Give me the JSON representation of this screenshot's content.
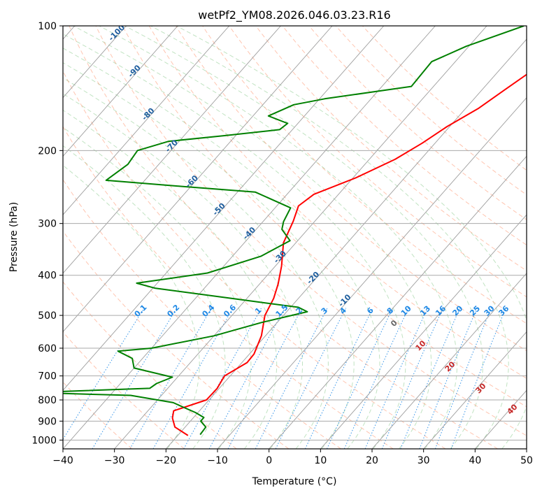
{
  "chart_data": {
    "type": "line",
    "title": "wetPf2_YM08.2026.046.03.23.R16",
    "xlabel": "Temperature (°C)",
    "ylabel": "Pressure (hPa)",
    "xlim": [
      -40,
      50
    ],
    "ylim": [
      1050,
      100
    ],
    "y_scale": "log",
    "grid": true,
    "x_ticks": [
      "−40",
      "−30",
      "−20",
      "−10",
      "0",
      "10",
      "20",
      "30",
      "40",
      "50"
    ],
    "y_ticks": [
      "100",
      "200",
      "300",
      "400",
      "500",
      "600",
      "700",
      "800",
      "900",
      "1000"
    ],
    "series": [
      {
        "color": "#ff0000",
        "points": [
          [
            -7.6,
            100
          ],
          [
            -8.5,
            110
          ],
          [
            -10.5,
            118
          ],
          [
            -13.5,
            128
          ],
          [
            -15.5,
            142
          ],
          [
            -17.5,
            158
          ],
          [
            -20.5,
            175
          ],
          [
            -22.5,
            192
          ],
          [
            -25.0,
            210
          ],
          [
            -29.5,
            233
          ],
          [
            -34.8,
            255
          ],
          [
            -35.8,
            272
          ],
          [
            -34.2,
            296
          ],
          [
            -32.4,
            334
          ],
          [
            -28.8,
            380
          ],
          [
            -26.4,
            420
          ],
          [
            -24.8,
            455
          ],
          [
            -23.6,
            500
          ],
          [
            -20.8,
            560
          ],
          [
            -19.1,
            620
          ],
          [
            -19.0,
            650
          ],
          [
            -21.1,
            700
          ],
          [
            -20.4,
            750
          ],
          [
            -20.5,
            800
          ],
          [
            -25.0,
            850
          ],
          [
            -24.0,
            885
          ],
          [
            -22.0,
            930
          ],
          [
            -18.0,
            975
          ]
        ]
      },
      {
        "color": "#008000",
        "points": [
          [
            -22.8,
            100
          ],
          [
            -30.5,
            112
          ],
          [
            -34.6,
            122
          ],
          [
            -34.3,
            140
          ],
          [
            -49.0,
            150
          ],
          [
            -54.0,
            155
          ],
          [
            -57.0,
            165
          ],
          [
            -52.0,
            172
          ],
          [
            -52.5,
            178
          ],
          [
            -62.0,
            184
          ],
          [
            -72.0,
            190
          ],
          [
            -76.5,
            200
          ],
          [
            -76.0,
            216
          ],
          [
            -77.5,
            236
          ],
          [
            -62.0,
            244
          ],
          [
            -46.5,
            252
          ],
          [
            -37.0,
            275
          ],
          [
            -36.0,
            297
          ],
          [
            -35.0,
            310
          ],
          [
            -31.5,
            330
          ],
          [
            -34.5,
            360
          ],
          [
            -42.0,
            395
          ],
          [
            -54.0,
            418
          ],
          [
            -49.5,
            430
          ],
          [
            -33.0,
            455
          ],
          [
            -18.5,
            478
          ],
          [
            -16.0,
            490
          ],
          [
            -23.0,
            520
          ],
          [
            -30.0,
            560
          ],
          [
            -40.0,
            600
          ],
          [
            -46.0,
            610
          ],
          [
            -42.0,
            635
          ],
          [
            -40.0,
            670
          ],
          [
            -31.0,
            705
          ],
          [
            -33.0,
            730
          ],
          [
            -33.5,
            750
          ],
          [
            -56.0,
            768
          ],
          [
            -36.0,
            780
          ],
          [
            -26.5,
            812
          ],
          [
            -23.5,
            835
          ],
          [
            -20.5,
            858
          ],
          [
            -18.0,
            882
          ],
          [
            -18.0,
            900
          ],
          [
            -16.0,
            930
          ],
          [
            -15.8,
            970
          ]
        ]
      }
    ],
    "mixing_ratio_labels": [
      "0.1",
      "0.2",
      "0.4",
      "0.6",
      "1",
      "1.5",
      "2",
      "3",
      "4",
      "6",
      "8",
      "10",
      "13",
      "16",
      "20",
      "25",
      "30",
      "36"
    ],
    "dry_adiabat_labels": [
      "-100",
      "-90",
      "-80",
      "-70",
      "-60",
      "-50",
      "-40",
      "-30",
      "-20",
      "-10"
    ],
    "moist_adiabat_labels": [
      "0",
      "10",
      "20",
      "30",
      "40"
    ]
  }
}
